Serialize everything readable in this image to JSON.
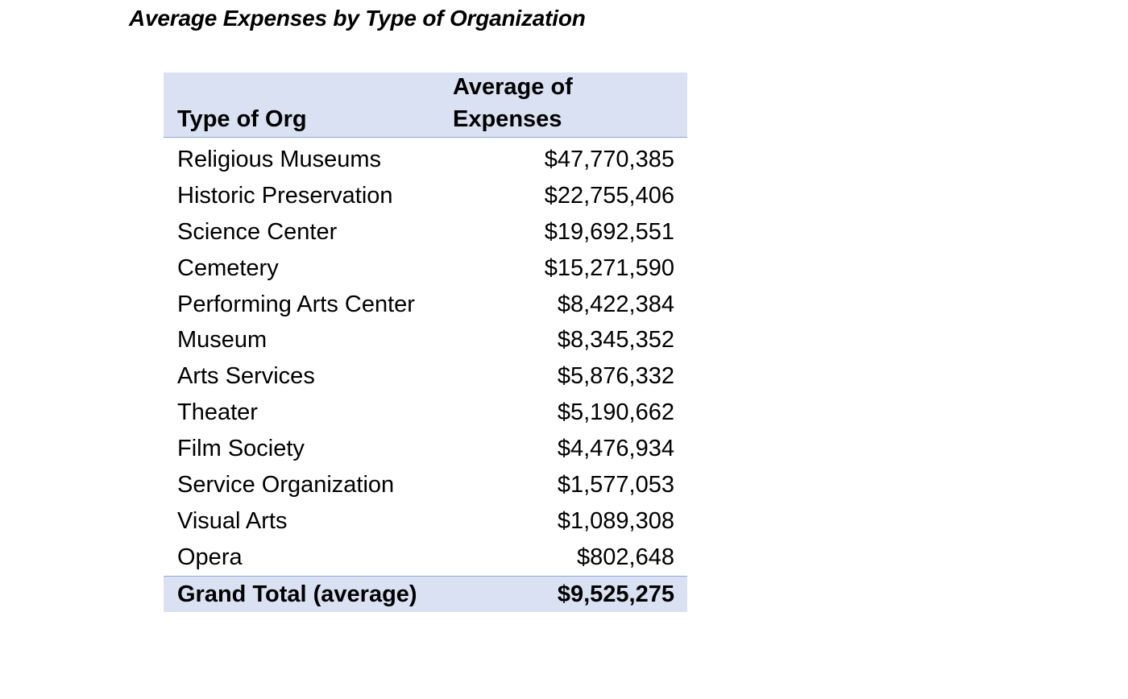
{
  "title": "Average Expenses by Type of Organization",
  "table": {
    "header": {
      "col1": "Type of Org",
      "col2_line1": "Average of",
      "col2_line2": "Expenses"
    },
    "rows": [
      {
        "label": "Religious Museums",
        "value": "$47,770,385"
      },
      {
        "label": "Historic Preservation",
        "value": "$22,755,406"
      },
      {
        "label": "Science Center",
        "value": "$19,692,551"
      },
      {
        "label": "Cemetery",
        "value": "$15,271,590"
      },
      {
        "label": "Performing Arts Center",
        "value": "$8,422,384"
      },
      {
        "label": "Museum",
        "value": "$8,345,352"
      },
      {
        "label": "Arts Services",
        "value": "$5,876,332"
      },
      {
        "label": "Theater",
        "value": "$5,190,662"
      },
      {
        "label": "Film Society",
        "value": "$4,476,934"
      },
      {
        "label": "Service Organization",
        "value": "$1,577,053"
      },
      {
        "label": "Visual Arts",
        "value": "$1,089,308"
      },
      {
        "label": "Opera",
        "value": "$802,648"
      }
    ],
    "total": {
      "label": "Grand Total (average)",
      "value": "$9,525,275"
    }
  },
  "colors": {
    "header_fill": "#d9e1f2",
    "border": "#8ea9db"
  }
}
